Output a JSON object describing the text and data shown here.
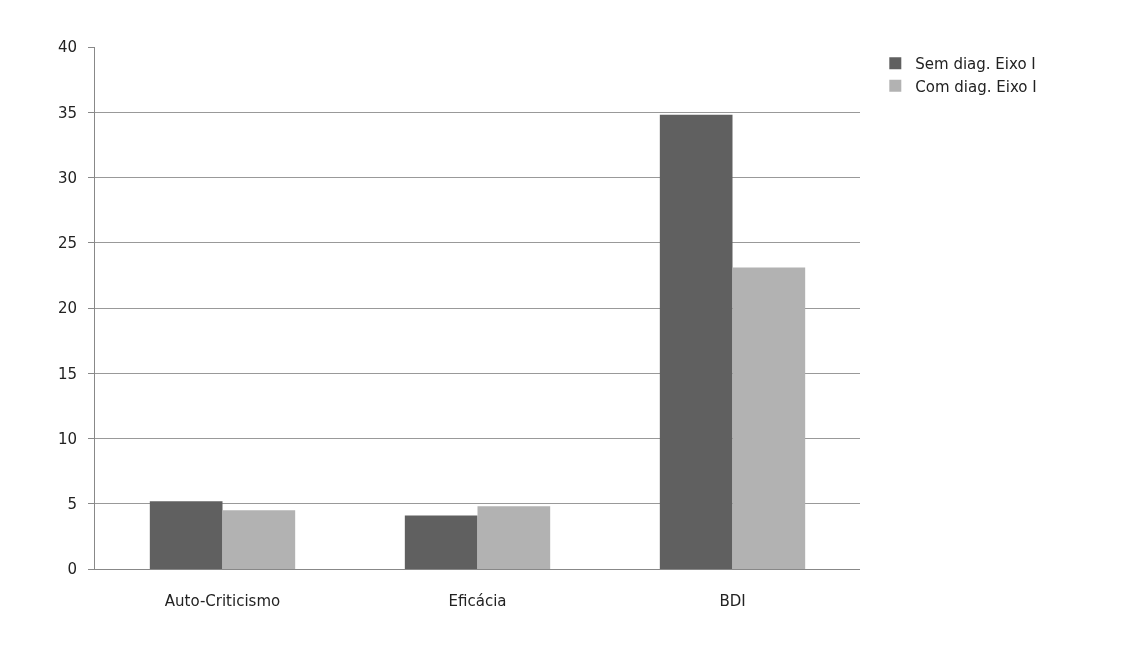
{
  "chart_data": {
    "type": "bar",
    "categories": [
      "Auto-Criticismo",
      "Eficácia",
      "BDI"
    ],
    "series": [
      {
        "name": "Sem diag. Eixo I",
        "color": "#606060",
        "values": [
          5.2,
          4.1,
          34.8
        ]
      },
      {
        "name": "Com diag. Eixo I",
        "color": "#b2b2b2",
        "values": [
          4.5,
          4.8,
          23.1
        ]
      }
    ],
    "ylim": [
      0,
      40
    ],
    "yticks": [
      0,
      5,
      10,
      15,
      20,
      25,
      30,
      35,
      40
    ],
    "grid": "y",
    "legend": "top right"
  }
}
